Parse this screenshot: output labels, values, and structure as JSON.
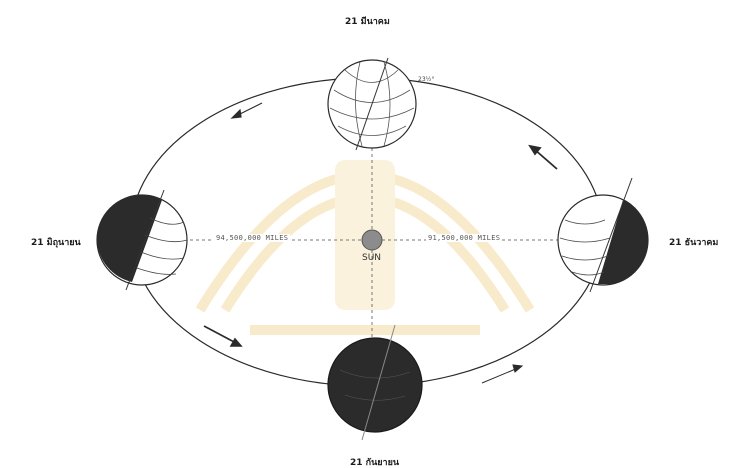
{
  "labels": {
    "top": "21 มีนาคม",
    "left": "21 มิถุนายน",
    "right": "21 ธันวาคม",
    "bottom": "21 กันยายน",
    "sun": "SUN",
    "dist_left": "94,500,000 MILES",
    "dist_right": "91,500,000 MILES",
    "top_note": "23½°"
  },
  "colors": {
    "line": "#2a2a2a",
    "night": "#2b2b2b",
    "sun": "#8c8c8c",
    "watermark": "#f1d58f"
  }
}
